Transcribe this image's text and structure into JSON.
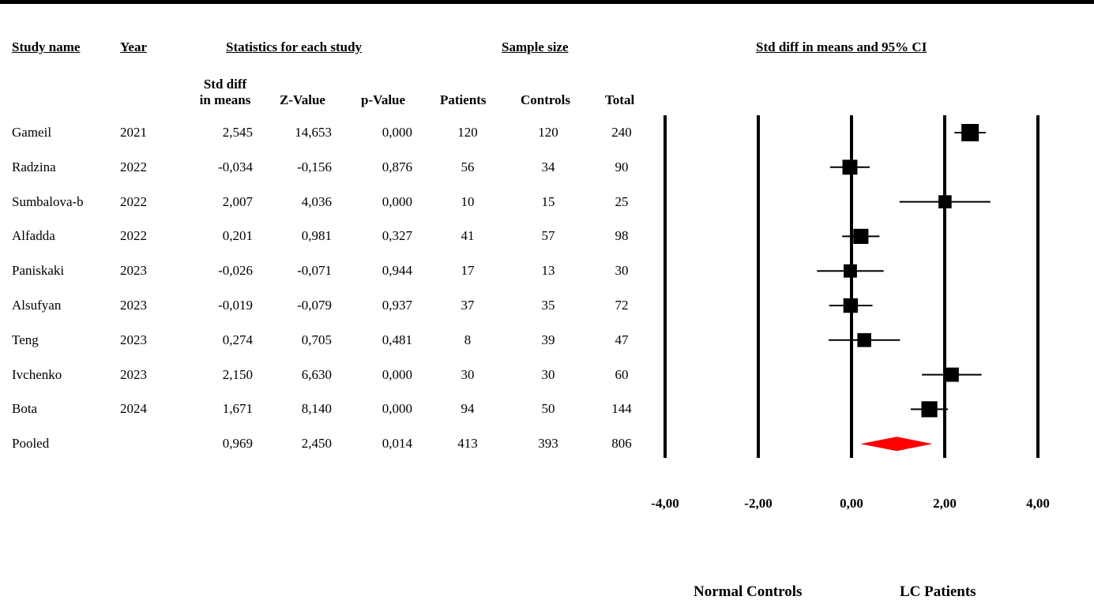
{
  "headers": {
    "study_name": "Study name",
    "year": "Year",
    "stats_group": "Statistics for each study",
    "sample_group": "Sample size",
    "plot_title": "Std diff in means and 95% CI",
    "std_diff_line1": "Std diff",
    "std_diff_line2": "in means",
    "z_value": "Z-Value",
    "p_value": "p-Value",
    "patients": "Patients",
    "controls": "Controls",
    "total": "Total"
  },
  "rows": [
    {
      "name": "Gameil",
      "year": "2021",
      "std_diff": "2,545",
      "z": "14,653",
      "p": "0,000",
      "patients": "120",
      "controls": "120",
      "total": "240"
    },
    {
      "name": "Radzina",
      "year": "2022",
      "std_diff": "-0,034",
      "z": "-0,156",
      "p": "0,876",
      "patients": "56",
      "controls": "34",
      "total": "90"
    },
    {
      "name": "Sumbalova-b",
      "year": "2022",
      "std_diff": "2,007",
      "z": "4,036",
      "p": "0,000",
      "patients": "10",
      "controls": "15",
      "total": "25"
    },
    {
      "name": "Alfadda",
      "year": "2022",
      "std_diff": "0,201",
      "z": "0,981",
      "p": "0,327",
      "patients": "41",
      "controls": "57",
      "total": "98"
    },
    {
      "name": "Paniskaki",
      "year": "2023",
      "std_diff": "-0,026",
      "z": "-0,071",
      "p": "0,944",
      "patients": "17",
      "controls": "13",
      "total": "30"
    },
    {
      "name": "Alsufyan",
      "year": "2023",
      "std_diff": "-0,019",
      "z": "-0,079",
      "p": "0,937",
      "patients": "37",
      "controls": "35",
      "total": "72"
    },
    {
      "name": "Teng",
      "year": "2023",
      "std_diff": "0,274",
      "z": "0,705",
      "p": "0,481",
      "patients": "8",
      "controls": "39",
      "total": "47"
    },
    {
      "name": "Ivchenko",
      "year": "2023",
      "std_diff": "2,150",
      "z": "6,630",
      "p": "0,000",
      "patients": "30",
      "controls": "30",
      "total": "60"
    },
    {
      "name": "Bota",
      "year": "2024",
      "std_diff": "1,671",
      "z": "8,140",
      "p": "0,000",
      "patients": "94",
      "controls": "50",
      "total": "144"
    },
    {
      "name": "Pooled",
      "year": "",
      "std_diff": "0,969",
      "z": "2,450",
      "p": "0,014",
      "patients": "413",
      "controls": "393",
      "total": "806"
    }
  ],
  "footer": {
    "left_label": "Normal Controls",
    "right_label": "LC Patients"
  },
  "chart_data": {
    "type": "forest",
    "title": "Std diff in means and 95% CI",
    "xlim": [
      -4,
      4
    ],
    "xticks": [
      -4,
      -2,
      0,
      2,
      4
    ],
    "xtick_labels": [
      "-4,00",
      "-2,00",
      "0,00",
      "2,00",
      "4,00"
    ],
    "studies": [
      {
        "name": "Gameil",
        "effect": 2.545,
        "lower": 2.21,
        "upper": 2.88,
        "weight": 240
      },
      {
        "name": "Radzina",
        "effect": -0.034,
        "lower": -0.46,
        "upper": 0.39,
        "weight": 90
      },
      {
        "name": "Sumbalova-b",
        "effect": 2.007,
        "lower": 1.03,
        "upper": 2.98,
        "weight": 25
      },
      {
        "name": "Alfadda",
        "effect": 0.201,
        "lower": -0.2,
        "upper": 0.6,
        "weight": 98
      },
      {
        "name": "Paniskaki",
        "effect": -0.026,
        "lower": -0.74,
        "upper": 0.69,
        "weight": 30
      },
      {
        "name": "Alsufyan",
        "effect": -0.019,
        "lower": -0.48,
        "upper": 0.45,
        "weight": 72
      },
      {
        "name": "Teng",
        "effect": 0.274,
        "lower": -0.49,
        "upper": 1.04,
        "weight": 47
      },
      {
        "name": "Ivchenko",
        "effect": 2.15,
        "lower": 1.51,
        "upper": 2.79,
        "weight": 60
      },
      {
        "name": "Bota",
        "effect": 1.671,
        "lower": 1.27,
        "upper": 2.07,
        "weight": 144
      }
    ],
    "pooled": {
      "effect": 0.969,
      "lower": 0.19,
      "upper": 1.74
    },
    "pooled_color": "#ff0000",
    "marker_color": "#000000"
  }
}
